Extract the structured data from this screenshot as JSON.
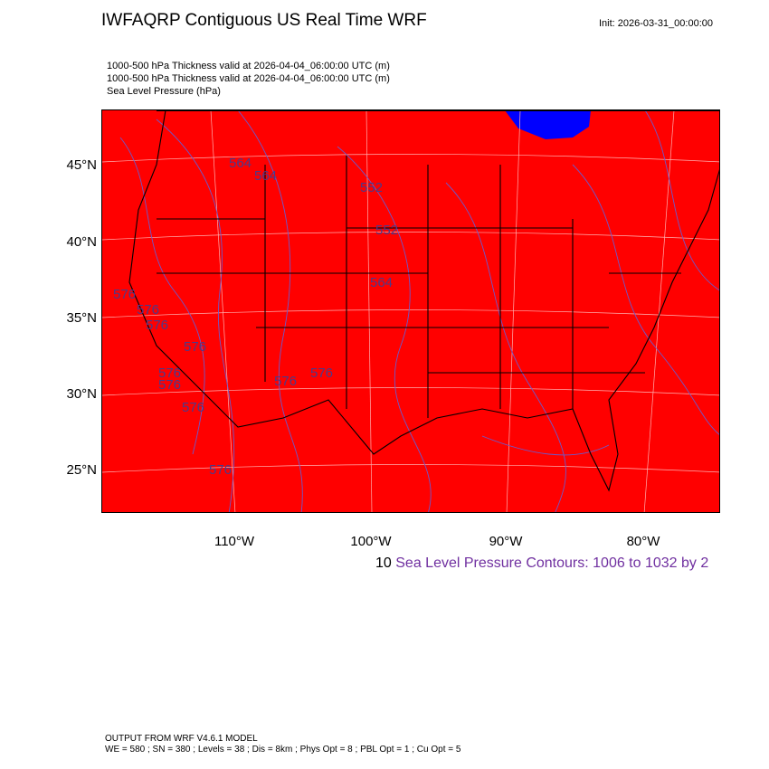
{
  "header": {
    "title": "IWFAQRP Contiguous US Real Time WRF",
    "init": "Init: 2026-03-31_00:00:00"
  },
  "subtitles": [
    "1000-500 hPa Thickness valid at 2026-04-04_06:00:00 UTC   (m)",
    "1000-500 hPa Thickness valid at 2026-04-04_06:00:00 UTC   (m)",
    "Sea Level Pressure   (hPa)"
  ],
  "chart_data": {
    "type": "contour map",
    "lat_ticks": [
      "45°N",
      "40°N",
      "35°N",
      "30°N",
      "25°N"
    ],
    "lon_ticks": [
      "110°W",
      "100°W",
      "90°W",
      "80°W"
    ],
    "colors": {
      "fill": "#ff0000",
      "water_patch": "#0000ff",
      "slp_contours": "#6a5acd",
      "boundaries": "#000000"
    },
    "thickness_labels": [
      "564",
      "564",
      "552",
      "552",
      "564",
      "576",
      "576",
      "576",
      "576",
      "576",
      "576",
      "576",
      "576",
      "576",
      "576"
    ],
    "contour_info": {
      "zero": "10",
      "text": "Sea Level Pressure Contours: 1006 to 1032 by 2"
    }
  },
  "footer": {
    "line1": "OUTPUT FROM WRF V4.6.1 MODEL",
    "line2": "WE = 580 ; SN = 380 ; Levels = 38 ; Dis = 8km ; Phys Opt = 8 ; PBL Opt = 1 ; Cu Opt = 5"
  }
}
